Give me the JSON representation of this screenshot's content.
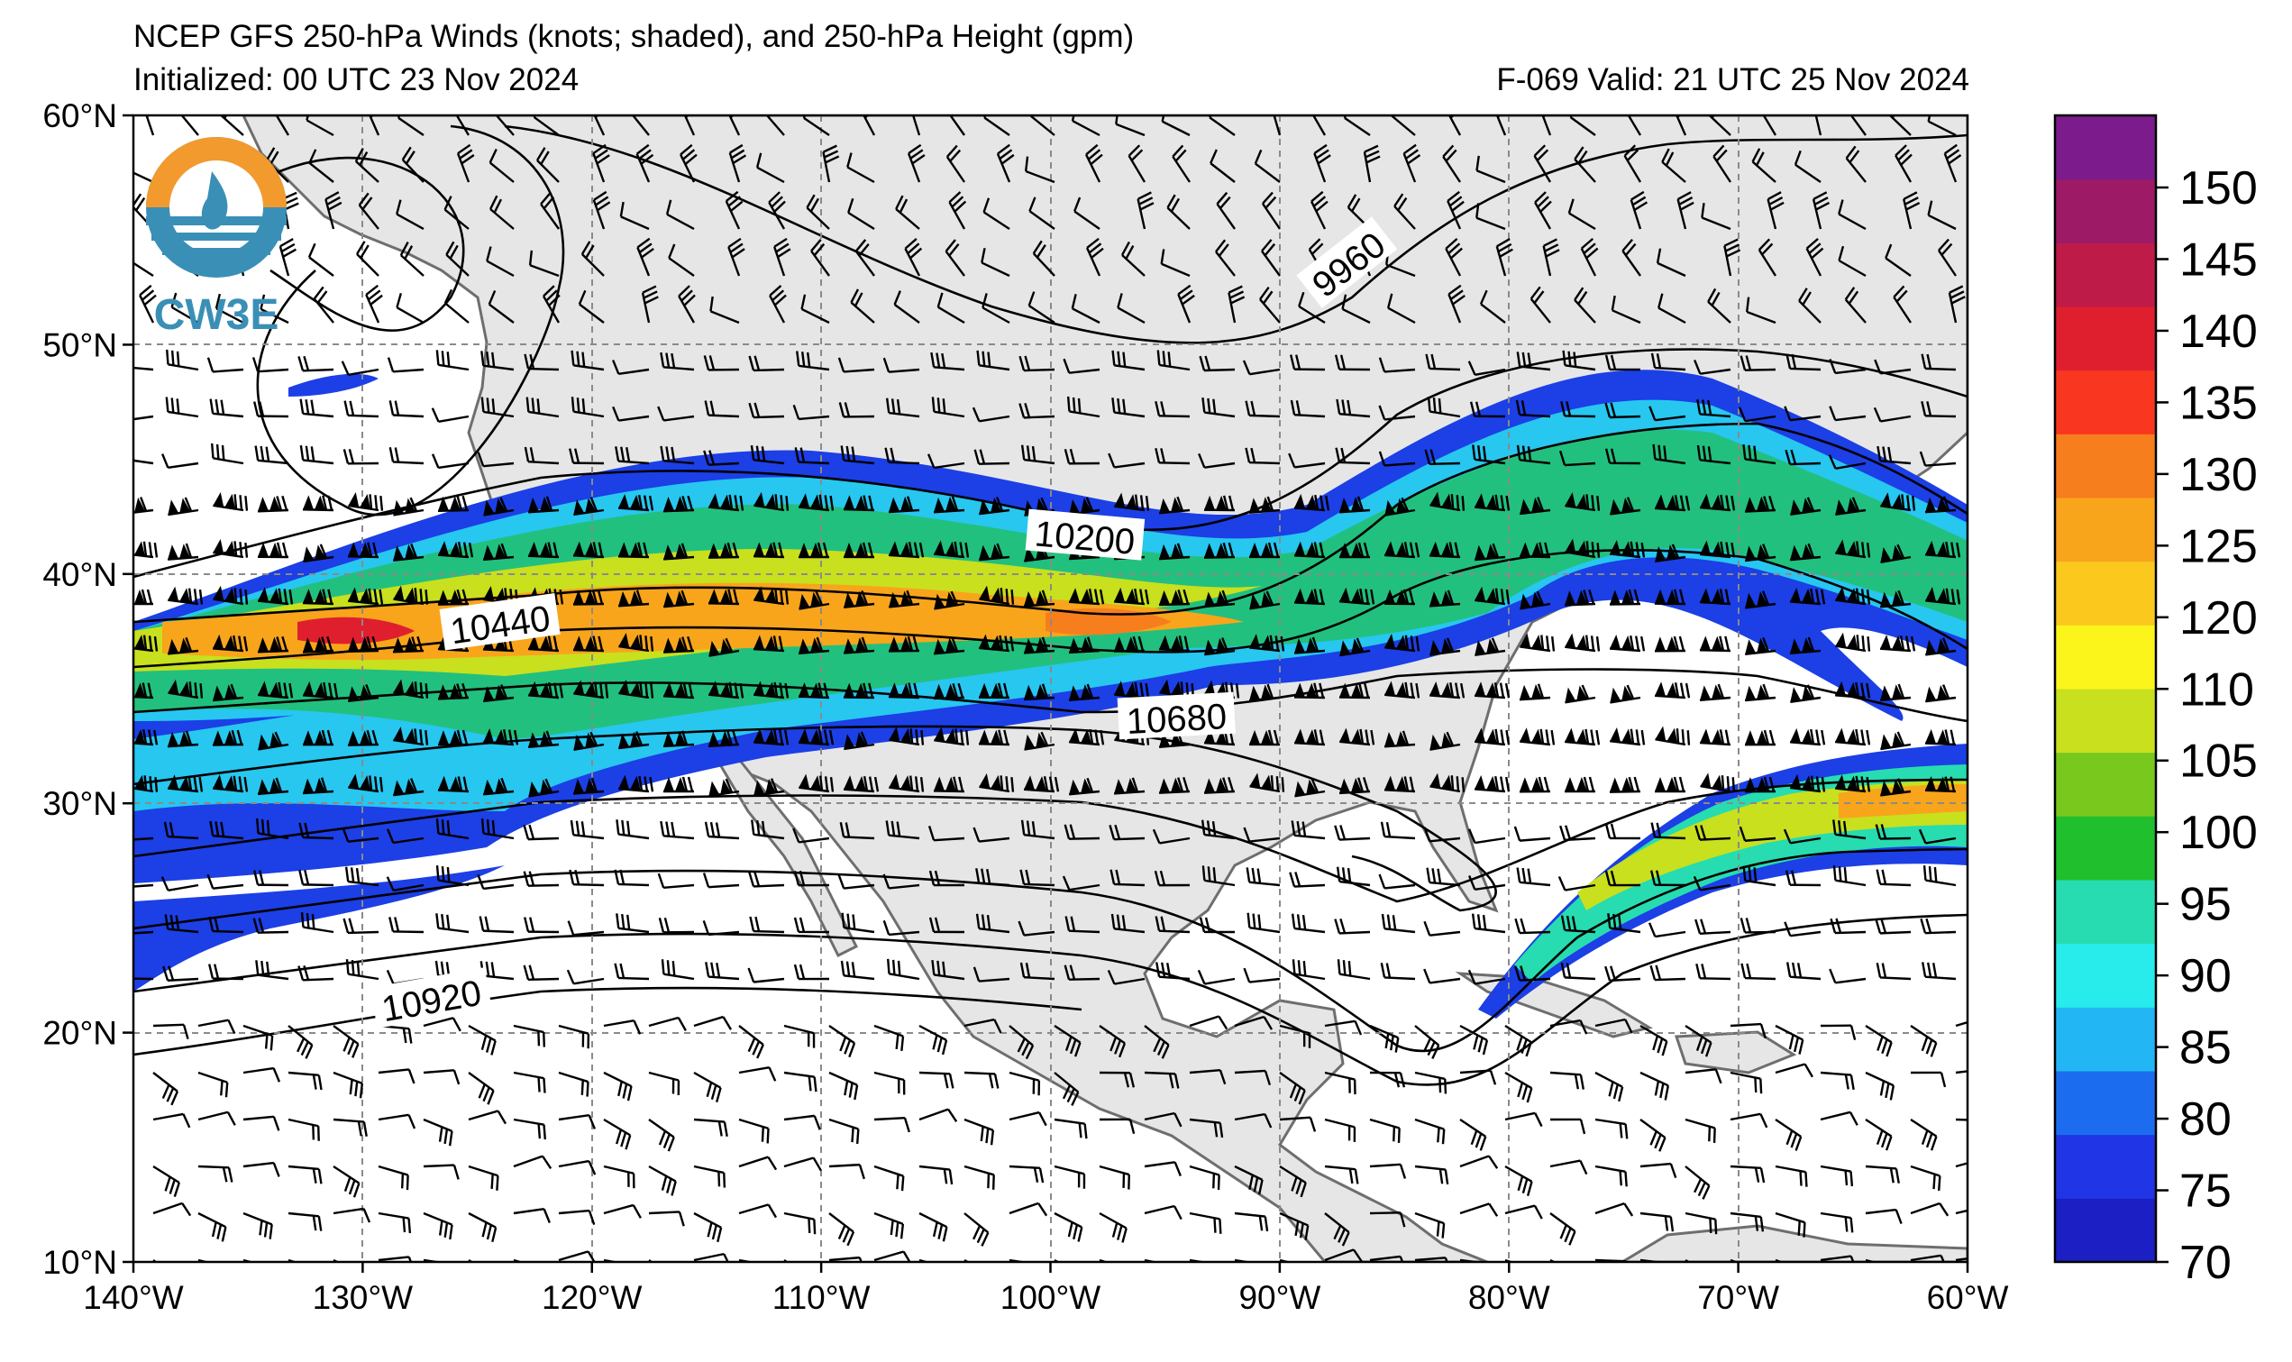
{
  "header": {
    "title": "NCEP GFS 250-hPa Winds (knots; shaded), and 250-hPa Height (gpm)",
    "initialized": "Initialized: 00 UTC 23 Nov 2024",
    "valid": "F-069  Valid: 21 UTC 25 Nov 2024"
  },
  "logo": {
    "text": "CW3E"
  },
  "map": {
    "lon_range": [
      -140,
      -60
    ],
    "lat_range": [
      10,
      60
    ],
    "lon_ticks": [
      {
        "value": -140,
        "label": "140°W"
      },
      {
        "value": -130,
        "label": "130°W"
      },
      {
        "value": -120,
        "label": "120°W"
      },
      {
        "value": -110,
        "label": "110°W"
      },
      {
        "value": -100,
        "label": "100°W"
      },
      {
        "value": -90,
        "label": "90°W"
      },
      {
        "value": -80,
        "label": "80°W"
      },
      {
        "value": -70,
        "label": "70°W"
      },
      {
        "value": -60,
        "label": "60°W"
      }
    ],
    "lat_ticks": [
      {
        "value": 60,
        "label": "60°N"
      },
      {
        "value": 50,
        "label": "50°N"
      },
      {
        "value": 40,
        "label": "40°N"
      },
      {
        "value": 30,
        "label": "30°N"
      },
      {
        "value": 20,
        "label": "20°N"
      },
      {
        "value": 10,
        "label": "10°N"
      }
    ],
    "contour_labels": [
      {
        "text": "9960",
        "lon": -87,
        "lat": 53.5,
        "angle": -38
      },
      {
        "text": "10200",
        "lon": -98.5,
        "lat": 41.6,
        "angle": 5
      },
      {
        "text": "10440",
        "lon": -124,
        "lat": 37.8,
        "angle": -8
      },
      {
        "text": "10680",
        "lon": -94.5,
        "lat": 33.7,
        "angle": -3
      },
      {
        "text": "10920",
        "lon": -127,
        "lat": 21.4,
        "angle": -10
      }
    ]
  },
  "colorbar": {
    "ticks": [
      "150",
      "145",
      "140",
      "135",
      "130",
      "125",
      "120",
      "110",
      "105",
      "100",
      "95",
      "90",
      "85",
      "80",
      "75",
      "70"
    ],
    "colors": [
      "#1b1fc4",
      "#1f35e6",
      "#1c6cf0",
      "#22b7f4",
      "#28ecec",
      "#27dcb0",
      "#1fbf2e",
      "#78c81e",
      "#c8e01e",
      "#fbf51c",
      "#fbc81e",
      "#f8a51c",
      "#f77e1c",
      "#f93620",
      "#e01f2e",
      "#be1b48",
      "#9c1a66",
      "#7b1b8c"
    ]
  }
}
